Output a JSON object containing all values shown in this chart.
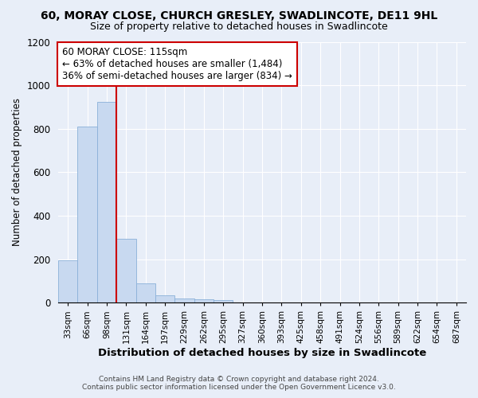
{
  "title": "60, MORAY CLOSE, CHURCH GRESLEY, SWADLINCOTE, DE11 9HL",
  "subtitle": "Size of property relative to detached houses in Swadlincote",
  "xlabel": "Distribution of detached houses by size in Swadlincote",
  "ylabel": "Number of detached properties",
  "bar_color": "#c8d9f0",
  "bar_edge_color": "#8ab0d8",
  "background_color": "#e8eef8",
  "grid_color": "#ffffff",
  "bin_labels": [
    "33sqm",
    "66sqm",
    "98sqm",
    "131sqm",
    "164sqm",
    "197sqm",
    "229sqm",
    "262sqm",
    "295sqm",
    "327sqm",
    "360sqm",
    "393sqm",
    "425sqm",
    "458sqm",
    "491sqm",
    "524sqm",
    "556sqm",
    "589sqm",
    "622sqm",
    "654sqm",
    "687sqm"
  ],
  "bar_values": [
    195,
    810,
    925,
    295,
    88,
    35,
    20,
    15,
    12,
    0,
    0,
    0,
    0,
    0,
    0,
    0,
    0,
    0,
    0,
    0,
    0
  ],
  "ylim": [
    0,
    1200
  ],
  "yticks": [
    0,
    200,
    400,
    600,
    800,
    1000,
    1200
  ],
  "vline_x": 2.5,
  "vline_color": "#cc0000",
  "annotation_text": "60 MORAY CLOSE: 115sqm\n← 63% of detached houses are smaller (1,484)\n36% of semi-detached houses are larger (834) →",
  "annotation_box_color": "#ffffff",
  "annotation_box_edge": "#cc0000",
  "footer_line1": "Contains HM Land Registry data © Crown copyright and database right 2024.",
  "footer_line2": "Contains public sector information licensed under the Open Government Licence v3.0."
}
